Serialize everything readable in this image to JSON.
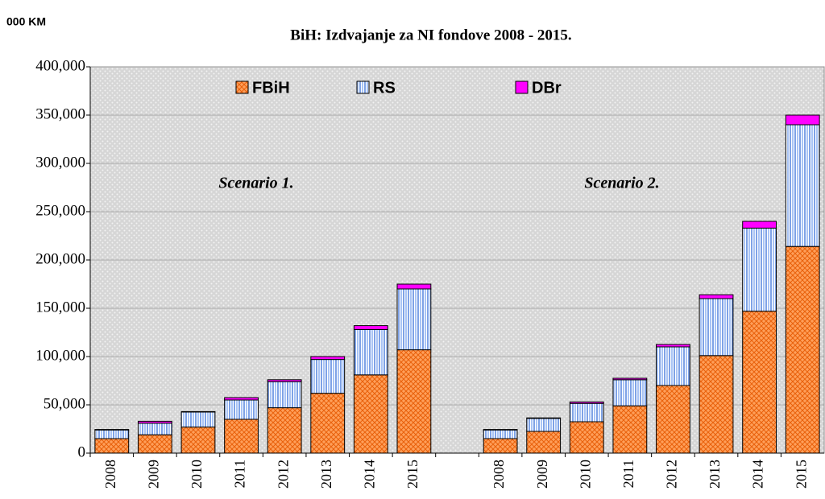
{
  "chart_data": {
    "type": "stacked_bar",
    "title": "BiH: Izdvajanje za NI fondove 2008 - 2015.",
    "unit_label": "000 KM",
    "annotations": [
      "Scenario 1.",
      "Scenario 2."
    ],
    "categories": [
      "2008",
      "2009",
      "2010",
      "2011",
      "2012",
      "2013",
      "2014",
      "2015",
      null,
      "2008",
      "2009",
      "2010",
      "2011",
      "2012",
      "2013",
      "2014",
      "2015"
    ],
    "series": [
      {
        "name": "FBiH",
        "color": "#ff9f5a",
        "values": [
          15000,
          19000,
          27000,
          35000,
          47000,
          62000,
          81000,
          107000,
          null,
          15000,
          22500,
          32500,
          49000,
          70000,
          101000,
          147000,
          214000
        ]
      },
      {
        "name": "RS",
        "color": "#a9c4f5",
        "values": [
          9000,
          12000,
          15500,
          20000,
          27000,
          35000,
          47000,
          63000,
          null,
          9000,
          13500,
          19000,
          27000,
          40000,
          59000,
          86000,
          126000
        ]
      },
      {
        "name": "DBr",
        "color": "#ff00ff",
        "values": [
          500,
          2000,
          500,
          2500,
          2000,
          3000,
          4000,
          5000,
          null,
          500,
          500,
          1500,
          1500,
          2500,
          4000,
          7000,
          10000
        ]
      }
    ],
    "ylim": [
      0,
      400000
    ],
    "yticks": [
      {
        "value": 0,
        "label": "0"
      },
      {
        "value": 50000,
        "label": "50,000"
      },
      {
        "value": 100000,
        "label": "100,000"
      },
      {
        "value": 150000,
        "label": "150,000"
      },
      {
        "value": 200000,
        "label": "200,000"
      },
      {
        "value": 250000,
        "label": "250,000"
      },
      {
        "value": 300000,
        "label": "300,000"
      },
      {
        "value": 350000,
        "label": "350,000"
      },
      {
        "value": 400000,
        "label": "400,000"
      }
    ],
    "grid": true
  }
}
